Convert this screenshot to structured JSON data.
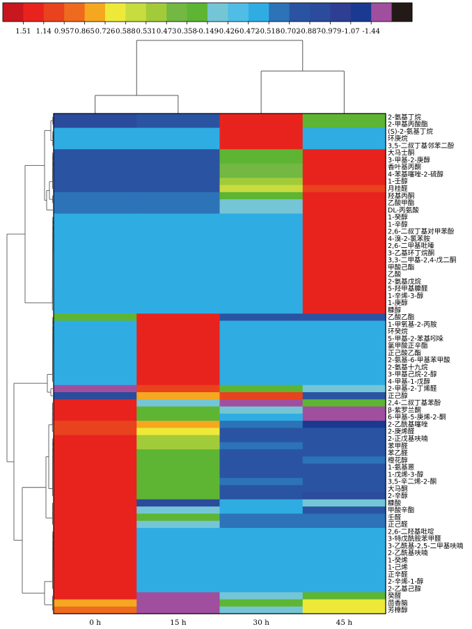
{
  "chart_data": {
    "type": "heatmap",
    "title": "",
    "columns": [
      "0 h",
      "15 h",
      "30 h",
      "45 h"
    ],
    "palette": [
      "#c8171d",
      "#e8231e",
      "#e9421e",
      "#ee6a1f",
      "#f5a81f",
      "#eee939",
      "#c7dc3f",
      "#a2cb3a",
      "#72b843",
      "#5db533",
      "#74c6d6",
      "#4fbde6",
      "#2fade3",
      "#2c73b8",
      "#2a54a2",
      "#2b4b9c",
      "#2e3e92",
      "#1a3a91",
      "#a04f9e",
      "#231916"
    ],
    "legend_values": [
      "1.51",
      "1.14",
      "0.957",
      "0.865",
      "0.726",
      "0.588",
      "0.531",
      "0.473",
      "0.358",
      "-0.149",
      "-0.426",
      "-0.472",
      "-0.518",
      "-0.702",
      "-0.887",
      "-0.979",
      "-1.07",
      "-1.44"
    ],
    "rows": [
      {
        "label": "2-氨基丁烷",
        "c": [
          15,
          14,
          1,
          9
        ]
      },
      {
        "label": "2-甲基丙酸酯",
        "c": [
          15,
          14,
          1,
          9
        ]
      },
      {
        "label": "(S)-2-氨基丁烷",
        "c": [
          12,
          12,
          1,
          12
        ]
      },
      {
        "label": "环庚烷",
        "c": [
          12,
          12,
          1,
          12
        ]
      },
      {
        "label": "3,5-二叔丁基邻苯二酚",
        "c": [
          12,
          12,
          1,
          12
        ]
      },
      {
        "label": "大马士酮",
        "c": [
          14,
          14,
          9,
          1
        ]
      },
      {
        "label": "3-甲基-2-庚醇",
        "c": [
          14,
          14,
          9,
          1
        ]
      },
      {
        "label": "香叶基丙酮",
        "c": [
          14,
          14,
          8,
          1
        ]
      },
      {
        "label": "4-苯基噻唑-2-硫醇",
        "c": [
          14,
          14,
          8,
          1
        ]
      },
      {
        "label": "1-壬醇",
        "c": [
          14,
          14,
          7,
          1
        ]
      },
      {
        "label": "月桂醛",
        "c": [
          14,
          14,
          6,
          2
        ]
      },
      {
        "label": "羟基丙酮",
        "c": [
          13,
          13,
          9,
          1
        ]
      },
      {
        "label": "乙酸甲酯",
        "c": [
          13,
          13,
          10,
          1
        ]
      },
      {
        "label": "DL-丙氨酸",
        "c": [
          13,
          13,
          10,
          1
        ]
      },
      {
        "label": "1-癸醇",
        "c": [
          12,
          12,
          12,
          1
        ]
      },
      {
        "label": "1-辛醇",
        "c": [
          12,
          12,
          12,
          1
        ]
      },
      {
        "label": "2,6-二叔丁基对甲苯酚",
        "c": [
          12,
          12,
          12,
          1
        ]
      },
      {
        "label": "4-溴-2-氯苯胺",
        "c": [
          12,
          12,
          12,
          1
        ]
      },
      {
        "label": "2,6-二甲基吡嗪",
        "c": [
          12,
          12,
          12,
          1
        ]
      },
      {
        "label": "3-乙基环丁烷酮",
        "c": [
          12,
          12,
          12,
          1
        ]
      },
      {
        "label": "3,3-二甲基-2,4-戊二酮",
        "c": [
          12,
          12,
          12,
          1
        ]
      },
      {
        "label": "甲酸己酯",
        "c": [
          12,
          12,
          12,
          1
        ]
      },
      {
        "label": "乙酸",
        "c": [
          12,
          12,
          12,
          1
        ]
      },
      {
        "label": "2-氨基戊烷",
        "c": [
          12,
          12,
          12,
          1
        ]
      },
      {
        "label": "5-羟甲基糠醛",
        "c": [
          12,
          12,
          12,
          1
        ]
      },
      {
        "label": "1-辛烯-3-醇",
        "c": [
          12,
          12,
          12,
          1
        ]
      },
      {
        "label": "1-庚醇",
        "c": [
          12,
          12,
          12,
          1
        ]
      },
      {
        "label": "糠醇",
        "c": [
          12,
          12,
          12,
          1
        ]
      },
      {
        "label": "乙酸乙酯",
        "c": [
          9,
          1,
          14,
          14
        ]
      },
      {
        "label": "1-甲氧基-2-丙胺",
        "c": [
          12,
          1,
          12,
          12
        ]
      },
      {
        "label": "环癸烷",
        "c": [
          12,
          1,
          12,
          12
        ]
      },
      {
        "label": "5-甲基-2-苯基吲哚",
        "c": [
          12,
          1,
          12,
          12
        ]
      },
      {
        "label": "氯甲酸正辛酯",
        "c": [
          12,
          1,
          12,
          12
        ]
      },
      {
        "label": "正己酸乙酯",
        "c": [
          12,
          1,
          12,
          12
        ]
      },
      {
        "label": "2-氨基-6-甲基苯甲酸",
        "c": [
          12,
          1,
          12,
          12
        ]
      },
      {
        "label": "2-氨基十九烷",
        "c": [
          12,
          1,
          12,
          12
        ]
      },
      {
        "label": "3-甲基己烷-2-醇",
        "c": [
          12,
          1,
          12,
          12
        ]
      },
      {
        "label": "4-甲基-1-戊醇",
        "c": [
          12,
          1,
          12,
          12
        ]
      },
      {
        "label": "2-甲基-2-丁烯醛",
        "c": [
          18,
          2,
          9,
          10
        ]
      },
      {
        "label": "正己醇",
        "c": [
          15,
          4,
          2,
          14
        ]
      },
      {
        "label": "2,4-二叔丁基苯酚",
        "c": [
          1,
          10,
          18,
          9
        ]
      },
      {
        "label": "β-紫罗兰酮",
        "c": [
          1,
          9,
          10,
          18
        ]
      },
      {
        "label": "6-甲基-5-庚烯-2-酮",
        "c": [
          1,
          9,
          12,
          18
        ]
      },
      {
        "label": "2-乙酰基噻唑",
        "c": [
          2,
          4,
          13,
          17
        ]
      },
      {
        "label": "2-庚烯醛",
        "c": [
          2,
          5,
          14,
          14
        ]
      },
      {
        "label": "2-正戊基呋喃",
        "c": [
          1,
          7,
          14,
          14
        ]
      },
      {
        "label": "苯甲醛",
        "c": [
          1,
          7,
          13,
          14
        ]
      },
      {
        "label": "苯乙醛",
        "c": [
          1,
          9,
          14,
          14
        ]
      },
      {
        "label": "橙花醇",
        "c": [
          1,
          9,
          14,
          13
        ]
      },
      {
        "label": "1-氨基蒽",
        "c": [
          1,
          9,
          14,
          14
        ]
      },
      {
        "label": "1-戊烯-3-醇",
        "c": [
          1,
          9,
          14,
          14
        ]
      },
      {
        "label": "3,5-辛二烯-2-酮",
        "c": [
          1,
          9,
          13,
          14
        ]
      },
      {
        "label": "大马酮",
        "c": [
          1,
          9,
          14,
          14
        ]
      },
      {
        "label": "2-辛醇",
        "c": [
          1,
          9,
          14,
          15
        ]
      },
      {
        "label": "糠酸",
        "c": [
          1,
          15,
          12,
          10
        ]
      },
      {
        "label": "甲酸辛酯",
        "c": [
          1,
          10,
          12,
          14
        ]
      },
      {
        "label": "壬醛",
        "c": [
          1,
          9,
          13,
          13
        ]
      },
      {
        "label": "正己醛",
        "c": [
          1,
          10,
          13,
          13
        ]
      },
      {
        "label": "2,6-二羟基吡啶",
        "c": [
          1,
          12,
          12,
          12
        ]
      },
      {
        "label": "3-特戊酰胺苯甲醛",
        "c": [
          1,
          12,
          12,
          12
        ]
      },
      {
        "label": "3-乙酰基-2,5-二甲基呋喃",
        "c": [
          1,
          12,
          12,
          12
        ]
      },
      {
        "label": "2-乙酰基呋喃",
        "c": [
          1,
          12,
          12,
          12
        ]
      },
      {
        "label": "1-癸烯",
        "c": [
          1,
          12,
          12,
          12
        ]
      },
      {
        "label": "1-己烯",
        "c": [
          1,
          12,
          12,
          12
        ]
      },
      {
        "label": "正辛醛",
        "c": [
          1,
          12,
          12,
          12
        ]
      },
      {
        "label": "2-辛烯-1-醇",
        "c": [
          1,
          12,
          12,
          12
        ]
      },
      {
        "label": "2-乙基己醇",
        "c": [
          1,
          12,
          12,
          12
        ]
      },
      {
        "label": "癸醛",
        "c": [
          1,
          18,
          10,
          9
        ]
      },
      {
        "label": "茴香脑",
        "c": [
          4,
          18,
          9,
          5
        ]
      },
      {
        "label": "芳樟醇",
        "c": [
          3,
          18,
          10,
          5
        ]
      }
    ]
  }
}
